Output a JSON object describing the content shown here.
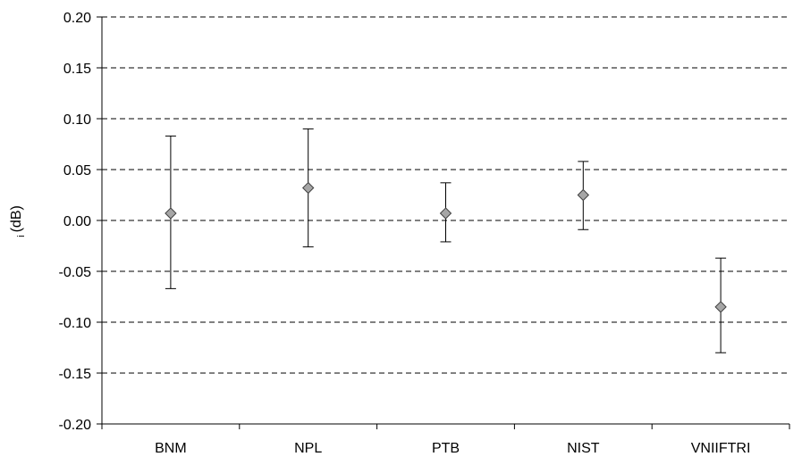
{
  "chart_data": {
    "type": "scatter",
    "title": "",
    "xlabel": "",
    "ylabel": "(dB)",
    "ylabel_subscript": "i",
    "ylim": [
      -0.2,
      0.2
    ],
    "yticks": [
      "0.20",
      "0.15",
      "0.10",
      "0.05",
      "0.00",
      "-0.05",
      "-0.10",
      "-0.15",
      "-0.20"
    ],
    "ytick_values": [
      0.2,
      0.15,
      0.1,
      0.05,
      0.0,
      -0.05,
      -0.1,
      -0.15,
      -0.2
    ],
    "grid": "horizontal dashed",
    "legend": "none",
    "categories": [
      "BNM",
      "NPL",
      "PTB",
      "NIST",
      "VNIIFTRI"
    ],
    "points": [
      {
        "label": "BNM",
        "value": 0.007,
        "err_high": 0.083,
        "err_low": -0.067
      },
      {
        "label": "NPL",
        "value": 0.032,
        "err_high": 0.09,
        "err_low": -0.026
      },
      {
        "label": "PTB",
        "value": 0.007,
        "err_high": 0.037,
        "err_low": -0.021
      },
      {
        "label": "NIST",
        "value": 0.025,
        "err_high": 0.058,
        "err_low": -0.009
      },
      {
        "label": "VNIIFTRI",
        "value": -0.085,
        "err_high": -0.037,
        "err_low": -0.13
      }
    ],
    "colors": {
      "marker_fill": "#a6a6a6",
      "marker_stroke": "#404040",
      "gridline": "#000000",
      "axis": "#000000"
    }
  }
}
